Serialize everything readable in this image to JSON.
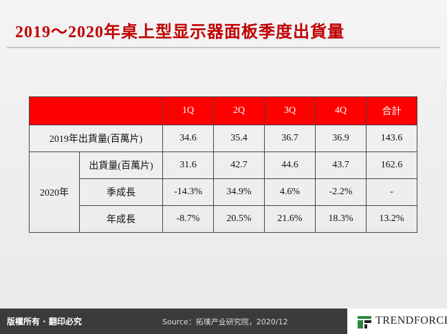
{
  "title": "2019～2020年桌上型显示器面板季度出貨量",
  "table": {
    "columns": [
      "1Q",
      "2Q",
      "3Q",
      "4Q",
      "合計"
    ],
    "row_2019": {
      "label": "2019年出貨量(百萬片)",
      "values": [
        "34.6",
        "35.4",
        "36.7",
        "36.9",
        "143.6"
      ]
    },
    "group_2020": {
      "label": "2020年",
      "rows": [
        {
          "label": "出貨量(百萬片)",
          "values": [
            "31.6",
            "42.7",
            "44.6",
            "43.7",
            "162.6"
          ]
        },
        {
          "label": "季成長",
          "values": [
            "-14.3%",
            "34.9%",
            "4.6%",
            "-2.2%",
            "-"
          ]
        },
        {
          "label": "年成長",
          "values": [
            "-8.7%",
            "20.5%",
            "21.6%",
            "18.3%",
            "13.2%"
          ]
        }
      ]
    }
  },
  "footer": {
    "copyright": "版權所有 · 翻印必究",
    "source": "Source：拓墣产业研究院，2020/12",
    "logo": "TRENDFORCE"
  }
}
